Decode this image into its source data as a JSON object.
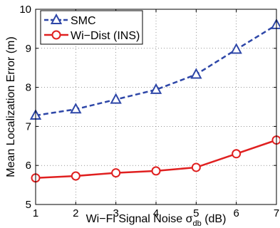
{
  "chart_data": {
    "type": "line",
    "title": "",
    "xlabel": "Wi−Fi Signal Noise σ",
    "xlabel_subscript": "db",
    "xlabel_suffix": " (dB)",
    "ylabel": "Mean Localization Error (m)",
    "xlim": [
      1,
      7
    ],
    "ylim": [
      5,
      10
    ],
    "xticks": [
      "1",
      "2",
      "3",
      "4",
      "5",
      "6",
      "7"
    ],
    "yticks": [
      "5",
      "6",
      "7",
      "8",
      "9",
      "10"
    ],
    "grid": true,
    "legend_position": "top-left",
    "x": [
      1,
      2,
      3,
      4,
      5,
      6,
      7
    ],
    "series": [
      {
        "name": "SMC",
        "color": "#2e47a8",
        "line_style": "dashed",
        "marker": "triangle",
        "values": [
          7.28,
          7.44,
          7.69,
          7.94,
          8.33,
          8.97,
          9.6
        ]
      },
      {
        "name": "Wi−Dist (INS)",
        "color": "#e02020",
        "line_style": "solid",
        "marker": "circle",
        "values": [
          5.68,
          5.73,
          5.81,
          5.86,
          5.95,
          6.3,
          6.65
        ]
      }
    ]
  }
}
